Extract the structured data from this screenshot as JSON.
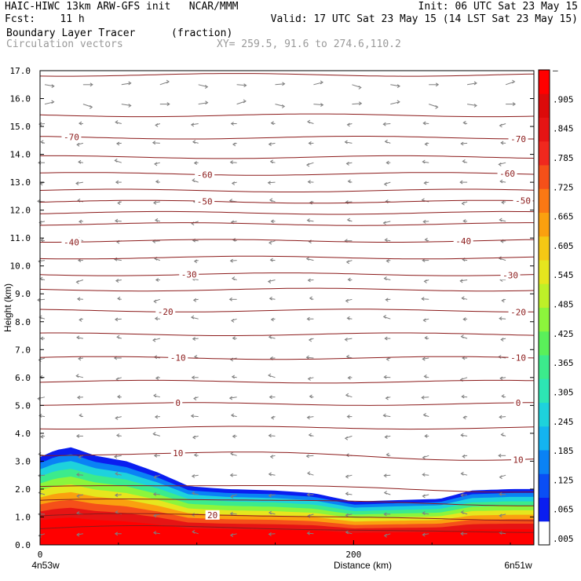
{
  "header": {
    "line1_left": "HAIC-HIWC 13km ARW-GFS init   NCAR/MMM",
    "line1_right": "Init: 06 UTC Sat 23 May 15",
    "line2_left": "Fcst:    11 h",
    "line2_right": "Valid: 17 UTC Sat 23 May 15 (14 LST Sat 23 May 15)",
    "line3_field": "Boundary Layer Tracer",
    "line3_units": "(fraction)",
    "line4_vectors": "Circulation vectors",
    "line4_xy": "XY= 259.5, 91.6 to 274.6,110.2"
  },
  "colors": {
    "contour": "#8b1a1a",
    "vectors": "#7f7f7f",
    "tracer_scale": [
      "#ffffff",
      "#0a1ef0",
      "#0a4ef5",
      "#0a82f5",
      "#14b4f0",
      "#1ed2dc",
      "#2de6b4",
      "#3ceb8c",
      "#5af05a",
      "#8cf53c",
      "#bef028",
      "#e6e61e",
      "#f5c814",
      "#faa00f",
      "#fa7814",
      "#f55019",
      "#f0281e",
      "#e61414",
      "#dc0a0a",
      "#ff0000"
    ]
  },
  "chart_data": {
    "type": "cross-section",
    "title": "Boundary Layer Tracer",
    "units": "(fraction)",
    "xlabel": "Distance (km)",
    "ylabel": "Height (km)",
    "xlim": [
      0,
      315
    ],
    "ylim": [
      0.0,
      17.0
    ],
    "x_ticks": [
      {
        "value": 0,
        "label": "0"
      },
      {
        "value": 200,
        "label": "200"
      }
    ],
    "x_endpoints": {
      "left": "4n53w",
      "right": "6n51w"
    },
    "y_ticks": [
      "0.0",
      "1.0",
      "2.0",
      "3.0",
      "4.0",
      "5.0",
      "6.0",
      "7.0",
      "8.0",
      "9.0",
      "10.0",
      "11.0",
      "12.0",
      "13.0",
      "14.0",
      "15.0",
      "16.0",
      "17.0"
    ],
    "colorbar": {
      "labels": [
        ".005",
        ".065",
        ".125",
        ".185",
        ".245",
        ".305",
        ".365",
        ".425",
        ".485",
        ".545",
        ".605",
        ".665",
        ".725",
        ".785",
        ".845",
        ".905",
        "–"
      ]
    },
    "temperature_contours": [
      {
        "value": 20,
        "label": "20",
        "height_km": 1.0,
        "label_x_km": 110
      },
      {
        "value": 10,
        "label": "10",
        "height_km": 3.2,
        "label_x_km": 88
      },
      {
        "value": 10,
        "label": "10",
        "height_km": 3.2,
        "label_x_km": 305
      },
      {
        "value": 0,
        "label": "0",
        "height_km": 5.05,
        "label_x_km": 88
      },
      {
        "value": 0,
        "label": "0",
        "height_km": 5.05,
        "label_x_km": 305
      },
      {
        "value": -10,
        "label": "-10",
        "height_km": 6.7,
        "label_x_km": 88
      },
      {
        "value": -10,
        "label": "-10",
        "height_km": 6.7,
        "label_x_km": 305
      },
      {
        "value": -20,
        "label": "-20",
        "height_km": 8.4,
        "label_x_km": 80
      },
      {
        "value": -20,
        "label": "-20",
        "height_km": 8.4,
        "label_x_km": 305
      },
      {
        "value": -30,
        "label": "-30",
        "height_km": 9.7,
        "label_x_km": 95
      },
      {
        "value": -30,
        "label": "-30",
        "height_km": 9.7,
        "label_x_km": 300
      },
      {
        "value": -40,
        "label": "-40",
        "height_km": 10.9,
        "label_x_km": 20
      },
      {
        "value": -40,
        "label": "-40",
        "height_km": 10.9,
        "label_x_km": 270
      },
      {
        "value": -50,
        "label": "-50",
        "height_km": 12.3,
        "label_x_km": 105
      },
      {
        "value": -50,
        "label": "-50",
        "height_km": 12.3,
        "label_x_km": 308
      },
      {
        "value": -60,
        "label": "-60",
        "height_km": 13.3,
        "label_x_km": 105
      },
      {
        "value": -60,
        "label": "-60",
        "height_km": 13.3,
        "label_x_km": 298
      },
      {
        "value": -70,
        "label": "-70",
        "height_km": 14.6,
        "label_x_km": 20
      },
      {
        "value": -70,
        "label": "-70",
        "height_km": 14.6,
        "label_x_km": 305
      }
    ],
    "unlabeled_contour_heights_km": [
      0.55,
      1.55,
      2.05,
      4.2,
      5.85,
      7.55,
      9.15,
      10.3,
      11.5,
      11.9,
      12.7,
      13.9,
      15.4,
      16.85
    ],
    "tracer_top_km": [
      {
        "x": 0,
        "top": 3.15
      },
      {
        "x": 10,
        "top": 3.4
      },
      {
        "x": 20,
        "top": 3.5
      },
      {
        "x": 35,
        "top": 3.2
      },
      {
        "x": 55,
        "top": 3.0
      },
      {
        "x": 75,
        "top": 2.6
      },
      {
        "x": 95,
        "top": 2.1
      },
      {
        "x": 120,
        "top": 2.0
      },
      {
        "x": 150,
        "top": 1.95
      },
      {
        "x": 175,
        "top": 1.85
      },
      {
        "x": 200,
        "top": 1.55
      },
      {
        "x": 225,
        "top": 1.6
      },
      {
        "x": 255,
        "top": 1.65
      },
      {
        "x": 275,
        "top": 1.95
      },
      {
        "x": 300,
        "top": 2.0
      },
      {
        "x": 315,
        "top": 2.0
      }
    ]
  }
}
